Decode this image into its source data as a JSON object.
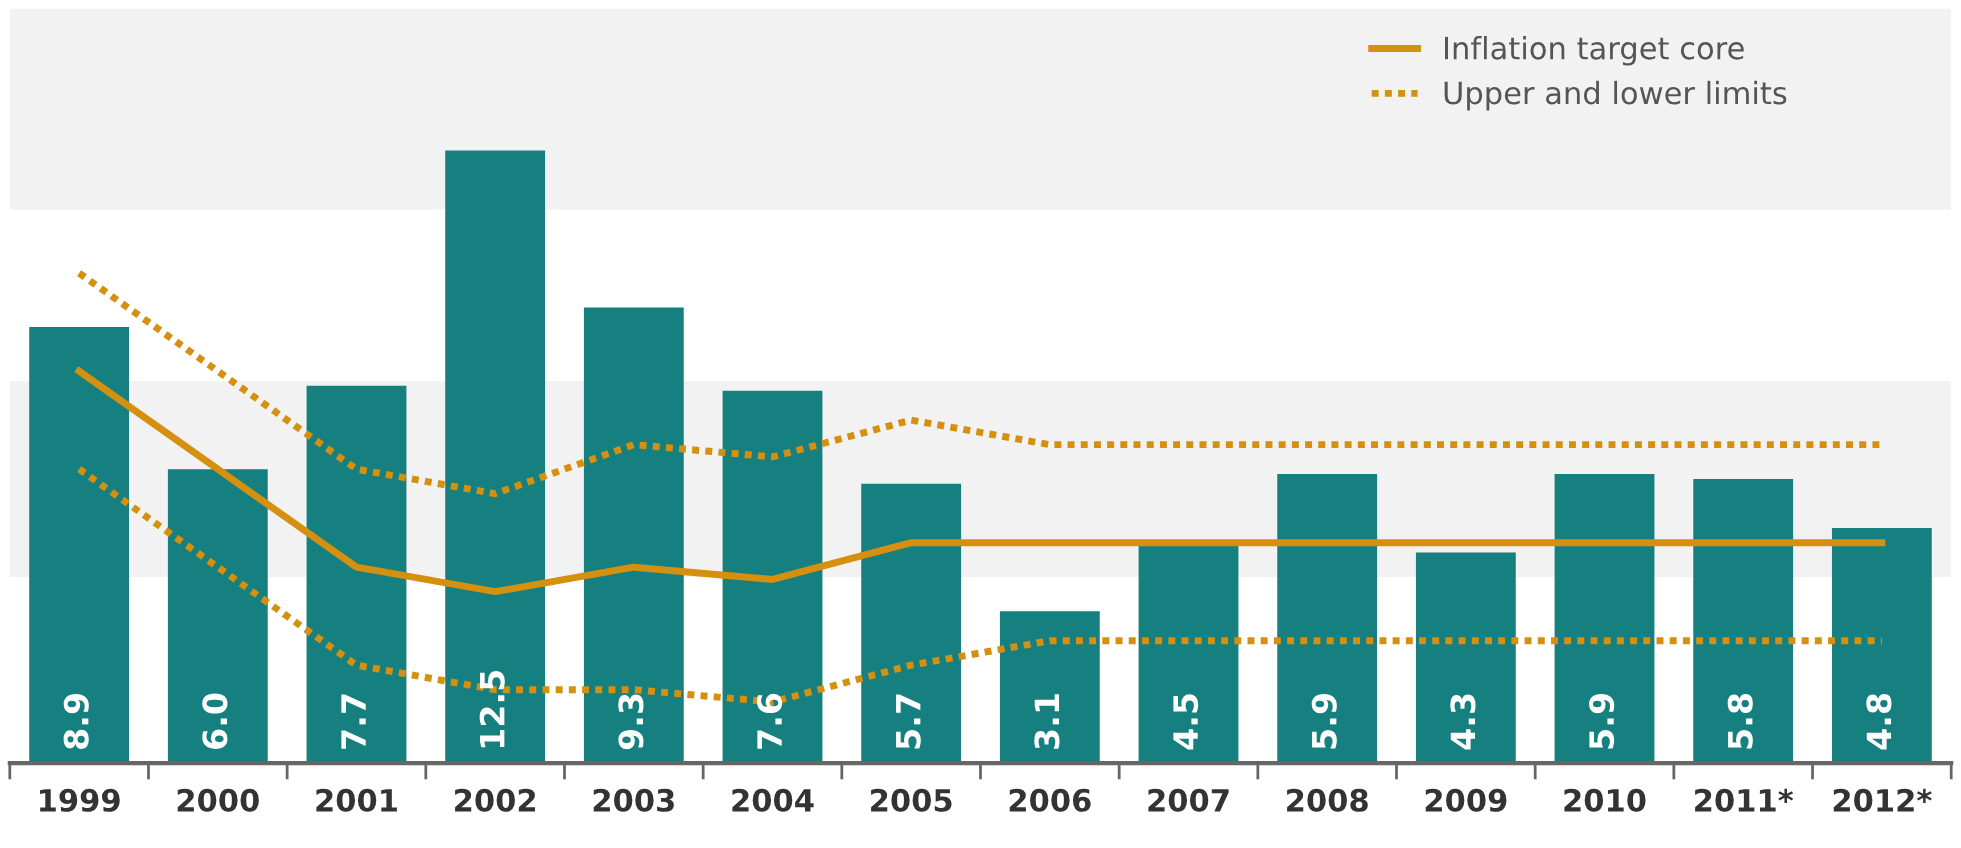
{
  "chart_data": {
    "type": "bar",
    "categories": [
      "1999",
      "2000",
      "2001",
      "2002",
      "2003",
      "2004",
      "2005",
      "2006",
      "2007",
      "2008",
      "2009",
      "2010",
      "2011*",
      "2012*"
    ],
    "series": [
      {
        "color": "#167f80",
        "values": [
          8.9,
          6.0,
          7.7,
          12.5,
          9.3,
          7.6,
          5.7,
          3.1,
          4.5,
          5.9,
          4.3,
          5.9,
          5.8,
          4.8
        ],
        "value_labels": [
          "8.9",
          "6.0",
          "7.7",
          "12.5",
          "9.3",
          "7.6",
          "5.7",
          "3.1",
          "4.5",
          "5.9",
          "4.3",
          "5.9",
          "5.8",
          "4.8"
        ]
      },
      {
        "type": "line",
        "name": "Inflation target core",
        "color": "#d4900e",
        "line_style": "solid",
        "values": [
          8,
          6,
          4,
          3.5,
          4,
          3.75,
          4.5,
          4.5,
          4.5,
          4.5,
          4.5,
          4.5,
          4.5,
          4.5
        ]
      },
      {
        "type": "line",
        "name": "Upper and lower limits",
        "color": "#d4900e",
        "line_style": "dotted",
        "values": [
          10,
          8,
          6,
          5.5,
          6.5,
          6.25,
          7,
          6.5,
          6.5,
          6.5,
          6.5,
          6.5,
          6.5,
          6.5
        ]
      },
      {
        "type": "line",
        "color": "#d4900e",
        "line_style": "dotted",
        "values": [
          6,
          4,
          2,
          1.5,
          1.5,
          1.25,
          2,
          2.5,
          2.5,
          2.5,
          2.5,
          2.5,
          2.5,
          2.5
        ]
      }
    ],
    "ylim": [
      0,
      15.4
    ],
    "bands": [
      {
        "axis": "y",
        "from": 3.8,
        "to": 7.8,
        "color": "#f2f2f2"
      },
      {
        "axis": "y",
        "from": 11.3,
        "to": 15.4,
        "color": "#f2f2f2"
      }
    ],
    "tick_labels": "x",
    "marker": "none",
    "legend": "top right",
    "grid": false
  }
}
